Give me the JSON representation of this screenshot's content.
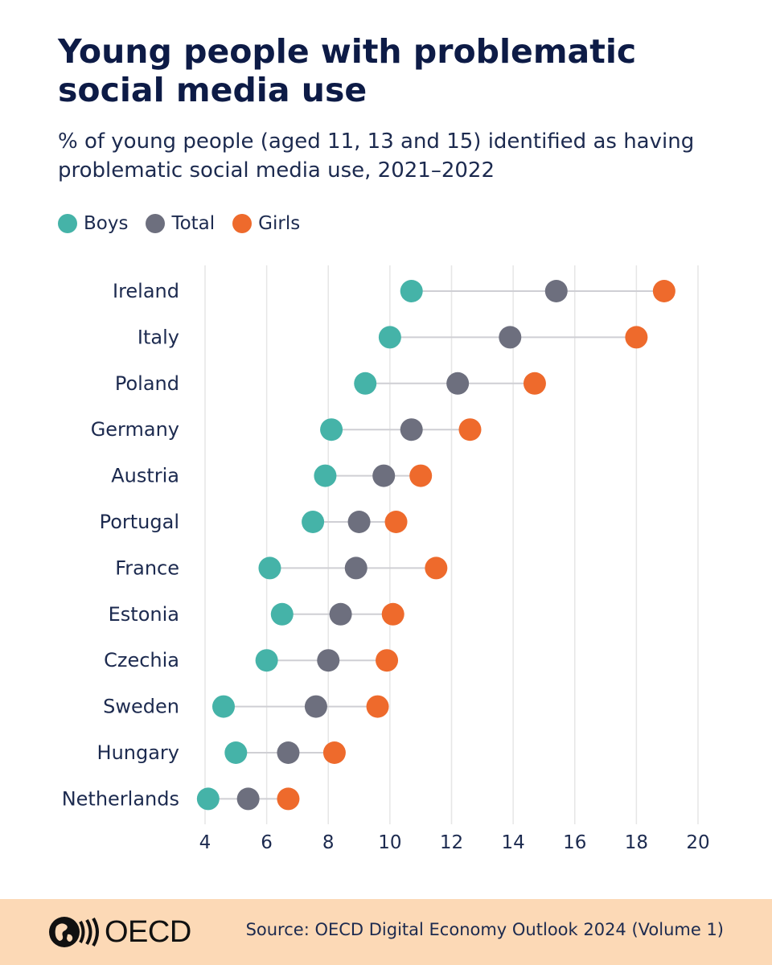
{
  "title": "Young people with problematic social media use",
  "subtitle": "% of young people (aged 11, 13 and 15) identified as having problematic social media use, 2021–2022",
  "legend": [
    {
      "label": "Boys",
      "color": "#45b3a8"
    },
    {
      "label": "Total",
      "color": "#6d6f7e"
    },
    {
      "label": "Girls",
      "color": "#ee6a2c"
    }
  ],
  "footer": {
    "logo_text": "OECD",
    "source": "Source: OECD Digital Economy Outlook 2024 (Volume 1)"
  },
  "chart_data": {
    "type": "dot-plot",
    "categories": [
      "Ireland",
      "Italy",
      "Poland",
      "Germany",
      "Austria",
      "Portugal",
      "France",
      "Estonia",
      "Czechia",
      "Sweden",
      "Hungary",
      "Netherlands"
    ],
    "series": [
      {
        "name": "Boys",
        "color": "#45b3a8",
        "values": [
          10.7,
          10.0,
          9.2,
          8.1,
          7.9,
          7.5,
          6.1,
          6.5,
          6.0,
          4.6,
          5.0,
          4.1
        ]
      },
      {
        "name": "Total",
        "color": "#6d6f7e",
        "values": [
          15.4,
          13.9,
          12.2,
          10.7,
          9.8,
          9.0,
          8.9,
          8.4,
          8.0,
          7.6,
          6.7,
          5.4
        ]
      },
      {
        "name": "Girls",
        "color": "#ee6a2c",
        "values": [
          18.9,
          18.0,
          14.7,
          12.6,
          11.0,
          10.2,
          11.5,
          10.1,
          9.9,
          9.6,
          8.2,
          6.7
        ]
      }
    ],
    "xticks": [
      4,
      6,
      8,
      10,
      12,
      14,
      16,
      18,
      20
    ],
    "xlim": [
      4,
      20
    ],
    "grid": "vertical"
  }
}
